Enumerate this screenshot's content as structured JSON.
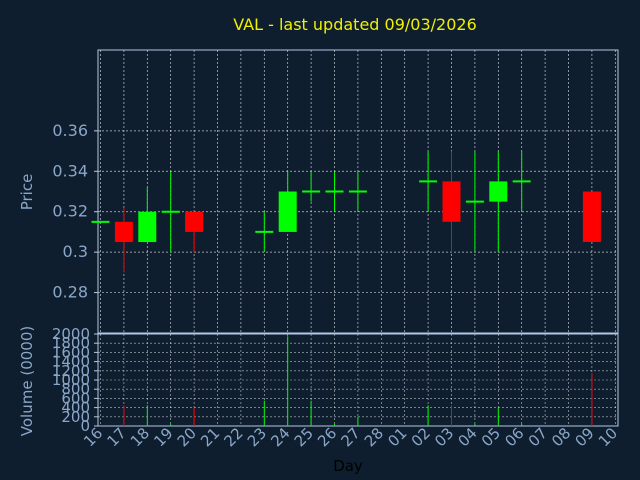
{
  "colors": {
    "background": "#0e1e2e",
    "frame": "#b4c8e4",
    "grid": "#ffffff",
    "tick_text": "#8aa6c8",
    "title": "#f0f000",
    "up": "#00ff00",
    "down": "#ff0000"
  },
  "chart_data": {
    "type": "candlestick",
    "title": "VAL - last updated 09/03/2026",
    "price_axis": {
      "label": "Price",
      "ticks": [
        "0.28",
        "0.3",
        "0.32",
        "0.34",
        "0.36"
      ],
      "tick_values": [
        0.28,
        0.3,
        0.32,
        0.34,
        0.36
      ],
      "range": [
        0.26,
        0.4
      ]
    },
    "volume_axis": {
      "label": "Volume (0000)",
      "ticks": [
        "0",
        "200",
        "400",
        "600",
        "800",
        "1000",
        "1200",
        "1400",
        "1600",
        "1800",
        "2000"
      ],
      "tick_values": [
        0,
        200,
        400,
        600,
        800,
        1000,
        1200,
        1400,
        1600,
        1800,
        2000
      ],
      "range": [
        0,
        2000
      ]
    },
    "x_axis": {
      "label": "Day",
      "ticks": [
        "16",
        "17",
        "18",
        "19",
        "20",
        "21",
        "22",
        "23",
        "24",
        "25",
        "26",
        "27",
        "28",
        "01",
        "02",
        "03",
        "04",
        "05",
        "06",
        "07",
        "08",
        "09",
        "10"
      ]
    },
    "grid": true,
    "candles": [
      {
        "day": "16",
        "open": 0.315,
        "close": 0.315,
        "high": 0.315,
        "low": 0.315,
        "volume": 0
      },
      {
        "day": "17",
        "open": 0.315,
        "close": 0.305,
        "high": 0.322,
        "low": 0.29,
        "volume": 450
      },
      {
        "day": "18",
        "open": 0.305,
        "close": 0.32,
        "high": 0.332,
        "low": 0.305,
        "volume": 450
      },
      {
        "day": "19",
        "open": 0.32,
        "close": 0.32,
        "high": 0.34,
        "low": 0.3,
        "volume": 50
      },
      {
        "day": "20",
        "open": 0.32,
        "close": 0.31,
        "high": 0.32,
        "low": 0.3,
        "volume": 400
      },
      {
        "day": "23",
        "open": 0.31,
        "close": 0.31,
        "high": 0.32,
        "low": 0.3,
        "volume": 550
      },
      {
        "day": "24",
        "open": 0.31,
        "close": 0.33,
        "high": 0.34,
        "low": 0.31,
        "volume": 1950
      },
      {
        "day": "25",
        "open": 0.33,
        "close": 0.33,
        "high": 0.34,
        "low": 0.325,
        "volume": 550
      },
      {
        "day": "26",
        "open": 0.33,
        "close": 0.33,
        "high": 0.34,
        "low": 0.32,
        "volume": 50
      },
      {
        "day": "27",
        "open": 0.33,
        "close": 0.33,
        "high": 0.34,
        "low": 0.32,
        "volume": 200
      },
      {
        "day": "02",
        "open": 0.335,
        "close": 0.335,
        "high": 0.35,
        "low": 0.32,
        "volume": 450
      },
      {
        "day": "03",
        "open": 0.335,
        "close": 0.315,
        "high": 0.35,
        "low": 0.3,
        "volume": 450
      },
      {
        "day": "04",
        "open": 0.325,
        "close": 0.325,
        "high": 0.35,
        "low": 0.3,
        "volume": 50
      },
      {
        "day": "05",
        "open": 0.325,
        "close": 0.335,
        "high": 0.35,
        "low": 0.3,
        "volume": 400
      },
      {
        "day": "06",
        "open": 0.335,
        "close": 0.335,
        "high": 0.35,
        "low": 0.32,
        "volume": 50
      },
      {
        "day": "09",
        "open": 0.33,
        "close": 0.305,
        "high": 0.33,
        "low": 0.305,
        "volume": 1150
      }
    ]
  }
}
